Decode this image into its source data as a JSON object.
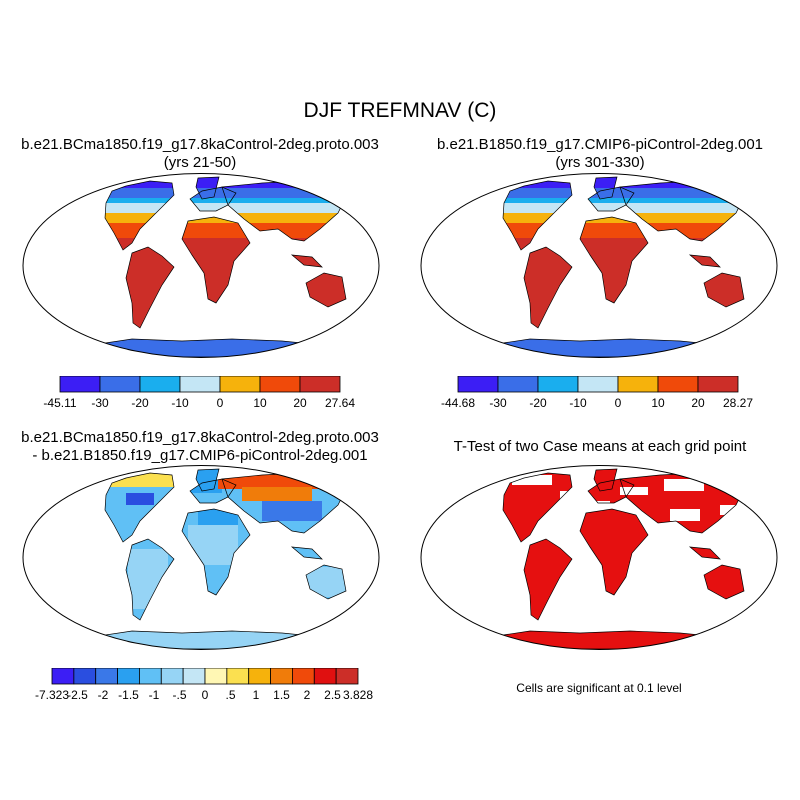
{
  "figure": {
    "title": "DJF TREFMNAV (C)"
  },
  "panels": {
    "case1": {
      "title_line1": "b.e21.BCma1850.f19_g17.8kaControl-2deg.proto.003",
      "title_line2": "(yrs 21-50)",
      "colorbar": {
        "labels": [
          "-45.11",
          "-30",
          "-20",
          "-10",
          "0",
          "10",
          "20",
          "27.64"
        ],
        "colors": [
          "#3c1ef5",
          "#3a6ee8",
          "#1aaeee",
          "#c4e6f5",
          "#f6b20c",
          "#f04a0a",
          "#cc2e28"
        ]
      }
    },
    "case2": {
      "title_line1": "b.e21.B1850.f19_g17.CMIP6-piControl-2deg.001",
      "title_line2": "(yrs 301-330)",
      "colorbar": {
        "labels": [
          "-44.68",
          "-30",
          "-20",
          "-10",
          "0",
          "10",
          "20",
          "28.27"
        ],
        "colors": [
          "#3c1ef5",
          "#3a6ee8",
          "#1aaeee",
          "#c4e6f5",
          "#f6b20c",
          "#f04a0a",
          "#cc2e28"
        ]
      }
    },
    "difference": {
      "title_line1": "b.e21.BCma1850.f19_g17.8kaControl-2deg.proto.003",
      "title_line2": "- b.e21.B1850.f19_g17.CMIP6-piControl-2deg.001",
      "colorbar": {
        "labels": [
          "-7.323",
          "-2.5",
          "-2",
          "-1.5",
          "-1",
          "-.5",
          "0",
          ".5",
          "1",
          "1.5",
          "2",
          "2.5",
          "3.828"
        ],
        "colors": [
          "#3c1ef5",
          "#2a4ee0",
          "#3a78e8",
          "#2aa0f0",
          "#60c0f5",
          "#96d4f5",
          "#c4e6f5",
          "#fff7b4",
          "#fbe050",
          "#f6b20c",
          "#f07c0a",
          "#f04a0a",
          "#e01010",
          "#cc2e28"
        ]
      }
    },
    "ttest": {
      "title": "T-Test of two Case means at each grid point",
      "note": "Cells are significant at 0.1 level",
      "significant_color": "#e51010"
    }
  }
}
